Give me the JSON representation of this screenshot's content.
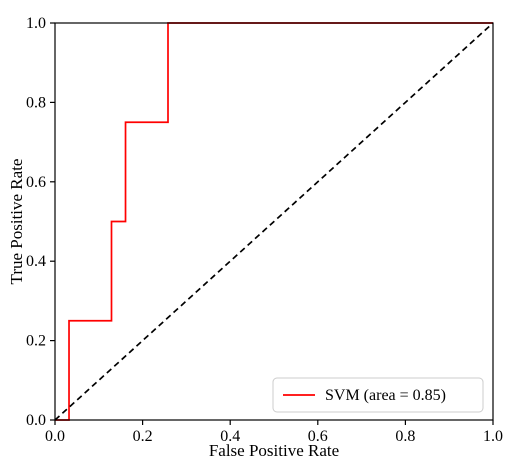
{
  "chart_data": {
    "type": "line",
    "title": "",
    "xlabel": "False Positive Rate",
    "ylabel": "True Positive Rate",
    "xlim": [
      0.0,
      1.0
    ],
    "ylim": [
      0.0,
      1.0
    ],
    "xticks": [
      "0.0",
      "0.2",
      "0.4",
      "0.6",
      "0.8",
      "1.0"
    ],
    "yticks": [
      "0.0",
      "0.2",
      "0.4",
      "0.6",
      "0.8",
      "1.0"
    ],
    "grid": false,
    "legend_position": "lower right",
    "series": [
      {
        "name": "SVM (area = 0.85)",
        "color": "#ff0000",
        "style": "solid",
        "x": [
          0.0,
          0.032,
          0.032,
          0.129,
          0.129,
          0.161,
          0.161,
          0.258,
          0.258,
          1.0
        ],
        "y": [
          0.0,
          0.0,
          0.25,
          0.25,
          0.5,
          0.5,
          0.75,
          0.75,
          1.0,
          1.0
        ]
      },
      {
        "color": "#000000",
        "style": "dashed",
        "x": [
          0.0,
          1.0
        ],
        "y": [
          0.0,
          1.0
        ]
      }
    ]
  }
}
